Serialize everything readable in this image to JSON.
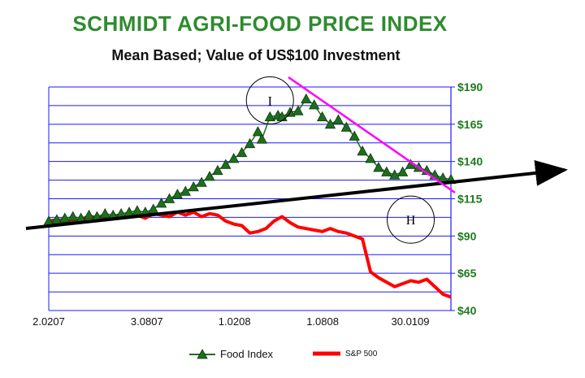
{
  "chart_data": {
    "type": "line",
    "title": "SCHMIDT AGRI-FOOD PRICE INDEX",
    "subtitle": "Mean Based; Value of US$100 Investment",
    "x_tick_labels": [
      "2.0207",
      "3.0807",
      "1.0208",
      "1.0808",
      "30.0109"
    ],
    "y_tick_labels": [
      "$40",
      "$65",
      "$90",
      "$115",
      "$140",
      "$165",
      "$190"
    ],
    "ylim": [
      40,
      190
    ],
    "y_gridlines": [
      40,
      52.5,
      65,
      77.5,
      90,
      102.5,
      115,
      127.5,
      140,
      152.5,
      165,
      177.5,
      190
    ],
    "grid": "horizontal",
    "x_index_range": [
      0,
      100
    ],
    "x_tick_positions": [
      0,
      24.4,
      46.2,
      68.1,
      89.9
    ],
    "series": [
      {
        "name": "Food Index",
        "color": "#1f6e1f",
        "marker": "triangle",
        "x": [
          0,
          2,
          4,
          6,
          8,
          10,
          12,
          14,
          16,
          18,
          20,
          22,
          24,
          26,
          28,
          30,
          32,
          34,
          36,
          38,
          40,
          42,
          44,
          46,
          48,
          50,
          52,
          53,
          55,
          57,
          58,
          60,
          62,
          64,
          66,
          68,
          70,
          72,
          74,
          76,
          78,
          80,
          82,
          84,
          86,
          88,
          90,
          92,
          94,
          96,
          98,
          100
        ],
        "y": [
          100,
          101,
          102,
          103,
          102,
          104,
          103,
          105,
          104,
          105,
          106,
          107,
          106,
          108,
          112,
          115,
          118,
          120,
          123,
          126,
          130,
          134,
          138,
          142,
          146,
          152,
          160,
          155,
          170,
          171,
          170,
          173,
          174,
          182,
          178,
          170,
          165,
          168,
          163,
          157,
          147,
          142,
          136,
          133,
          131,
          133,
          138,
          136,
          134,
          131,
          129,
          128
        ]
      },
      {
        "name": "S&P 500",
        "color": "#ff0000",
        "marker": "none",
        "x": [
          0,
          2,
          4,
          6,
          8,
          10,
          12,
          14,
          16,
          18,
          20,
          22,
          24,
          26,
          28,
          30,
          32,
          34,
          36,
          38,
          40,
          42,
          44,
          46,
          48,
          50,
          52,
          54,
          56,
          58,
          60,
          62,
          64,
          66,
          68,
          70,
          72,
          74,
          76,
          78,
          80,
          82,
          84,
          86,
          88,
          90,
          92,
          94,
          96,
          98,
          100
        ],
        "y": [
          100,
          101,
          99,
          100,
          101,
          102,
          103,
          102,
          103,
          104,
          103,
          104,
          102,
          105,
          104,
          103,
          106,
          104,
          106,
          103,
          105,
          104,
          100,
          98,
          97,
          92,
          93,
          95,
          100,
          103,
          99,
          96,
          95,
          94,
          93,
          95,
          93,
          92,
          90,
          88,
          66,
          62,
          59,
          56,
          58,
          60,
          59,
          61,
          56,
          51,
          49
        ]
      }
    ],
    "annotations": [
      {
        "text": "I",
        "x": 55,
        "y": 181
      },
      {
        "text": "H",
        "x": 90,
        "y": 101
      }
    ],
    "legend": {
      "placement": "bottom-center",
      "entries": [
        "Food Index",
        "S&P 500"
      ]
    }
  }
}
